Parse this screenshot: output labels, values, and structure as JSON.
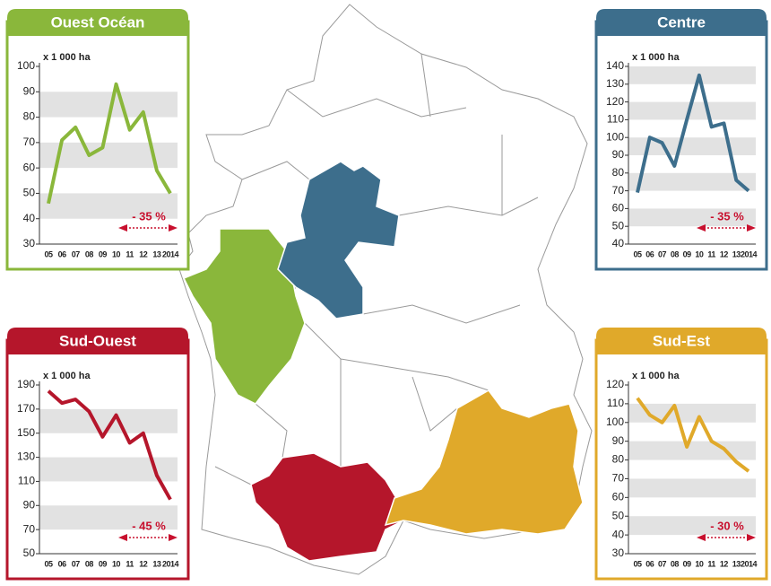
{
  "chart_data": [
    {
      "type": "line",
      "title": "Ouest Océan",
      "unit_label": "x 1 000 ha",
      "annotation": "- 35 %",
      "color": "#8ab73b",
      "categories": [
        "05",
        "06",
        "07",
        "08",
        "09",
        "10",
        "11",
        "12",
        "13",
        "2014"
      ],
      "values": [
        46,
        71,
        76,
        65,
        68,
        93,
        75,
        82,
        59,
        50
      ],
      "ylim": [
        30,
        100
      ],
      "yticks": [
        30,
        40,
        50,
        60,
        70,
        80,
        90,
        100
      ],
      "grid": true
    },
    {
      "type": "line",
      "title": "Centre",
      "unit_label": "x 1 000 ha",
      "annotation": "- 35 %",
      "color": "#3d6e8c",
      "categories": [
        "05",
        "06",
        "07",
        "08",
        "09",
        "10",
        "11",
        "12",
        "13",
        "2014"
      ],
      "values": [
        69,
        100,
        97,
        84,
        110,
        135,
        106,
        108,
        76,
        70
      ],
      "ylim": [
        40,
        140
      ],
      "yticks": [
        40,
        50,
        60,
        70,
        80,
        90,
        100,
        110,
        120,
        130,
        140
      ],
      "grid": true
    },
    {
      "type": "line",
      "title": "Sud-Ouest",
      "unit_label": "x 1 000 ha",
      "annotation": "- 45 %",
      "color": "#b5162b",
      "categories": [
        "05",
        "06",
        "07",
        "08",
        "09",
        "10",
        "11",
        "12",
        "13",
        "2014"
      ],
      "values": [
        185,
        175,
        178,
        168,
        147,
        165,
        142,
        150,
        115,
        95
      ],
      "ylim": [
        50,
        190
      ],
      "yticks": [
        50,
        70,
        90,
        110,
        130,
        150,
        170,
        190
      ],
      "grid": true
    },
    {
      "type": "line",
      "title": "Sud-Est",
      "unit_label": "x 1 000 ha",
      "annotation": "- 30 %",
      "color": "#e0a92a",
      "categories": [
        "05",
        "06",
        "07",
        "08",
        "09",
        "10",
        "11",
        "12",
        "13",
        "2014"
      ],
      "values": [
        113,
        104,
        100,
        109,
        87,
        103,
        90,
        86,
        79,
        74
      ],
      "ylim": [
        30,
        120
      ],
      "yticks": [
        30,
        40,
        50,
        60,
        70,
        80,
        90,
        100,
        110,
        120
      ],
      "grid": true
    }
  ]
}
